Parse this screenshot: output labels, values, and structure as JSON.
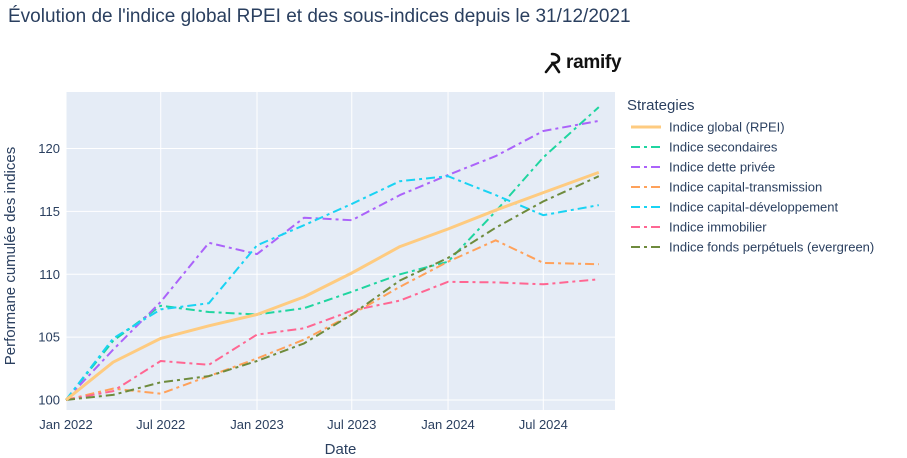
{
  "title": "Évolution de l'indice global RPEI et des sous-indices depuis le 31/12/2021",
  "logo_text": "ramify",
  "chart_data": {
    "type": "line",
    "xlabel": "Date",
    "ylabel": "Performane cumulée des indices",
    "x_ticks": [
      "Jan 2022",
      "Jul 2022",
      "Jan 2023",
      "Jul 2023",
      "Jan 2024",
      "Jul 2024"
    ],
    "y_ticks": [
      100,
      105,
      110,
      115,
      120
    ],
    "xlim": [
      "2022-01-01",
      "2024-11-15"
    ],
    "ylim": [
      99.2,
      124.5
    ],
    "legend_title": "Strategies",
    "legend_position": "right",
    "grid": true,
    "background": "#e5ecf6",
    "series": [
      {
        "name": "Indice global (RPEI)",
        "color": "#fecb80",
        "dash": "solid",
        "width": 3,
        "x": [
          "2022-01-01",
          "2022-04-01",
          "2022-07-01",
          "2022-10-01",
          "2023-01-01",
          "2023-04-01",
          "2023-07-01",
          "2023-10-01",
          "2024-01-01",
          "2024-04-01",
          "2024-07-01",
          "2024-10-15"
        ],
        "y": [
          100,
          103.0,
          104.9,
          105.9,
          106.8,
          108.2,
          110.1,
          112.2,
          113.6,
          115.1,
          116.5,
          118.1
        ]
      },
      {
        "name": "Indice secondaires",
        "color": "#1fd5a0",
        "dash": "dashdot",
        "width": 2,
        "x": [
          "2022-01-01",
          "2022-04-01",
          "2022-07-01",
          "2022-10-01",
          "2023-01-01",
          "2023-04-01",
          "2023-07-01",
          "2023-10-01",
          "2024-01-01",
          "2024-04-01",
          "2024-07-01",
          "2024-10-15"
        ],
        "y": [
          100,
          104.7,
          107.5,
          107.0,
          106.8,
          107.3,
          108.6,
          110.0,
          111.0,
          115.0,
          119.3,
          123.3
        ]
      },
      {
        "name": "Indice dette privée",
        "color": "#ab63fa",
        "dash": "dashdot",
        "width": 2,
        "x": [
          "2022-01-01",
          "2022-04-01",
          "2022-07-01",
          "2022-10-01",
          "2023-01-01",
          "2023-04-01",
          "2023-07-01",
          "2023-10-01",
          "2024-01-01",
          "2024-04-01",
          "2024-07-01",
          "2024-10-15"
        ],
        "y": [
          100,
          104.0,
          107.8,
          112.5,
          111.6,
          114.5,
          114.3,
          116.3,
          117.9,
          119.4,
          121.4,
          122.2
        ]
      },
      {
        "name": "Indice capital-transmission",
        "color": "#ffa15a",
        "dash": "dashdot",
        "width": 2,
        "x": [
          "2022-01-01",
          "2022-04-01",
          "2022-07-01",
          "2022-10-01",
          "2023-01-01",
          "2023-04-01",
          "2023-07-01",
          "2023-10-01",
          "2024-01-01",
          "2024-04-01",
          "2024-07-01",
          "2024-10-15"
        ],
        "y": [
          100,
          100.9,
          100.5,
          101.9,
          103.3,
          104.8,
          106.8,
          109.0,
          111.0,
          112.7,
          110.9,
          110.8
        ]
      },
      {
        "name": "Indice capital-développement",
        "color": "#19d3f3",
        "dash": "dashdot",
        "width": 2,
        "x": [
          "2022-01-01",
          "2022-04-01",
          "2022-07-01",
          "2022-10-01",
          "2023-01-01",
          "2023-04-01",
          "2023-07-01",
          "2023-10-01",
          "2024-01-01",
          "2024-04-01",
          "2024-07-01",
          "2024-10-15"
        ],
        "y": [
          100,
          104.9,
          107.2,
          107.7,
          112.3,
          113.9,
          115.6,
          117.4,
          117.8,
          116.3,
          114.7,
          115.5
        ]
      },
      {
        "name": "Indice immobilier",
        "color": "#ff6692",
        "dash": "dashdot",
        "width": 2,
        "x": [
          "2022-01-01",
          "2022-04-01",
          "2022-07-01",
          "2022-10-01",
          "2023-01-01",
          "2023-04-01",
          "2023-07-01",
          "2023-10-01",
          "2024-01-01",
          "2024-04-01",
          "2024-07-01",
          "2024-10-15"
        ],
        "y": [
          100,
          100.7,
          103.1,
          102.8,
          105.2,
          105.7,
          107.1,
          107.9,
          109.4,
          109.35,
          109.2,
          109.6
        ]
      },
      {
        "name": "Indice fonds perpétuels (evergreen)",
        "color": "#6e8b3d",
        "dash": "dashdot",
        "width": 2,
        "x": [
          "2022-01-01",
          "2022-04-01",
          "2022-07-01",
          "2022-10-01",
          "2023-01-01",
          "2023-04-01",
          "2023-07-01",
          "2023-10-01",
          "2024-01-01",
          "2024-04-01",
          "2024-07-01",
          "2024-10-15"
        ],
        "y": [
          100,
          100.4,
          101.4,
          101.9,
          103.1,
          104.5,
          106.8,
          109.5,
          111.3,
          113.7,
          115.8,
          117.8
        ]
      }
    ]
  }
}
